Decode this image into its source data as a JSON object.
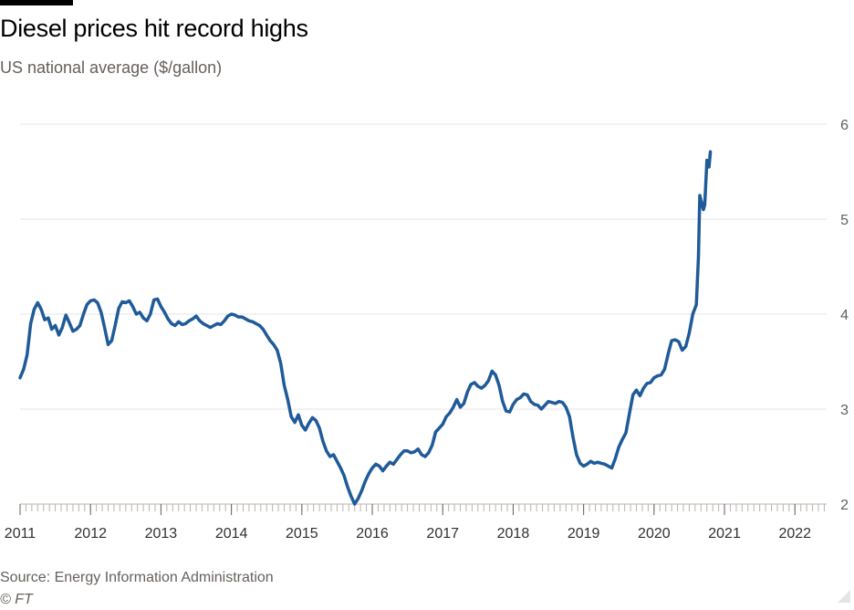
{
  "title": "Diesel prices hit record highs",
  "subtitle": "US national average ($/gallon)",
  "source": "Source: Energy Information Administration",
  "credit": "© FT",
  "colors": {
    "line": "#1f5a99",
    "grid": "#e7e6e6",
    "axis": "#33302e"
  },
  "chart_data": {
    "type": "line",
    "title": "Diesel prices hit record highs",
    "subtitle": "US national average ($/gallon)",
    "xlabel": "",
    "ylabel": "",
    "xlim": [
      2011.0,
      2022.45
    ],
    "ylim": [
      2,
      6
    ],
    "y_ticks": [
      "2",
      "3",
      "4",
      "5",
      "6"
    ],
    "x_ticks": [
      "2011",
      "2012",
      "2013",
      "2014",
      "2015",
      "2016",
      "2017",
      "2018",
      "2019",
      "2020",
      "2021",
      "2022"
    ],
    "grid": true,
    "y_axis_side": "right",
    "series": [
      {
        "points": [
          [
            2011.0,
            3.33
          ],
          [
            2011.05,
            3.42
          ],
          [
            2011.1,
            3.57
          ],
          [
            2011.15,
            3.9
          ],
          [
            2011.2,
            4.05
          ],
          [
            2011.25,
            4.12
          ],
          [
            2011.3,
            4.05
          ],
          [
            2011.35,
            3.94
          ],
          [
            2011.4,
            3.96
          ],
          [
            2011.45,
            3.84
          ],
          [
            2011.5,
            3.88
          ],
          [
            2011.55,
            3.78
          ],
          [
            2011.6,
            3.86
          ],
          [
            2011.65,
            3.99
          ],
          [
            2011.7,
            3.91
          ],
          [
            2011.75,
            3.82
          ],
          [
            2011.8,
            3.84
          ],
          [
            2011.85,
            3.88
          ],
          [
            2011.9,
            4.0
          ],
          [
            2011.95,
            4.1
          ],
          [
            2012.0,
            4.14
          ],
          [
            2012.05,
            4.15
          ],
          [
            2012.1,
            4.12
          ],
          [
            2012.15,
            4.02
          ],
          [
            2012.2,
            3.86
          ],
          [
            2012.25,
            3.68
          ],
          [
            2012.3,
            3.72
          ],
          [
            2012.35,
            3.88
          ],
          [
            2012.4,
            4.06
          ],
          [
            2012.45,
            4.13
          ],
          [
            2012.5,
            4.12
          ],
          [
            2012.55,
            4.14
          ],
          [
            2012.6,
            4.08
          ],
          [
            2012.65,
            4.0
          ],
          [
            2012.7,
            4.02
          ],
          [
            2012.75,
            3.96
          ],
          [
            2012.8,
            3.93
          ],
          [
            2012.85,
            4.0
          ],
          [
            2012.9,
            4.15
          ],
          [
            2012.95,
            4.16
          ],
          [
            2013.0,
            4.08
          ],
          [
            2013.05,
            4.02
          ],
          [
            2013.1,
            3.95
          ],
          [
            2013.15,
            3.9
          ],
          [
            2013.2,
            3.88
          ],
          [
            2013.25,
            3.92
          ],
          [
            2013.3,
            3.89
          ],
          [
            2013.35,
            3.9
          ],
          [
            2013.4,
            3.93
          ],
          [
            2013.45,
            3.95
          ],
          [
            2013.5,
            3.98
          ],
          [
            2013.55,
            3.93
          ],
          [
            2013.6,
            3.9
          ],
          [
            2013.65,
            3.88
          ],
          [
            2013.7,
            3.86
          ],
          [
            2013.75,
            3.88
          ],
          [
            2013.8,
            3.9
          ],
          [
            2013.85,
            3.89
          ],
          [
            2013.9,
            3.93
          ],
          [
            2013.95,
            3.98
          ],
          [
            2014.0,
            4.0
          ],
          [
            2014.05,
            3.99
          ],
          [
            2014.1,
            3.97
          ],
          [
            2014.15,
            3.97
          ],
          [
            2014.2,
            3.95
          ],
          [
            2014.25,
            3.93
          ],
          [
            2014.3,
            3.92
          ],
          [
            2014.35,
            3.9
          ],
          [
            2014.4,
            3.88
          ],
          [
            2014.45,
            3.84
          ],
          [
            2014.5,
            3.78
          ],
          [
            2014.55,
            3.72
          ],
          [
            2014.6,
            3.68
          ],
          [
            2014.65,
            3.62
          ],
          [
            2014.7,
            3.48
          ],
          [
            2014.75,
            3.25
          ],
          [
            2014.8,
            3.1
          ],
          [
            2014.85,
            2.92
          ],
          [
            2014.9,
            2.86
          ],
          [
            2014.95,
            2.94
          ],
          [
            2015.0,
            2.83
          ],
          [
            2015.05,
            2.78
          ],
          [
            2015.1,
            2.85
          ],
          [
            2015.15,
            2.91
          ],
          [
            2015.2,
            2.88
          ],
          [
            2015.25,
            2.8
          ],
          [
            2015.3,
            2.66
          ],
          [
            2015.35,
            2.56
          ],
          [
            2015.4,
            2.5
          ],
          [
            2015.45,
            2.52
          ],
          [
            2015.5,
            2.45
          ],
          [
            2015.55,
            2.38
          ],
          [
            2015.6,
            2.3
          ],
          [
            2015.65,
            2.18
          ],
          [
            2015.7,
            2.08
          ],
          [
            2015.75,
            2.0
          ],
          [
            2015.8,
            2.06
          ],
          [
            2015.85,
            2.14
          ],
          [
            2015.9,
            2.24
          ],
          [
            2015.95,
            2.32
          ],
          [
            2016.0,
            2.38
          ],
          [
            2016.05,
            2.42
          ],
          [
            2016.1,
            2.4
          ],
          [
            2016.15,
            2.35
          ],
          [
            2016.2,
            2.4
          ],
          [
            2016.25,
            2.44
          ],
          [
            2016.3,
            2.42
          ],
          [
            2016.35,
            2.47
          ],
          [
            2016.4,
            2.52
          ],
          [
            2016.45,
            2.56
          ],
          [
            2016.5,
            2.56
          ],
          [
            2016.55,
            2.54
          ],
          [
            2016.6,
            2.55
          ],
          [
            2016.65,
            2.58
          ],
          [
            2016.7,
            2.52
          ],
          [
            2016.75,
            2.5
          ],
          [
            2016.8,
            2.54
          ],
          [
            2016.85,
            2.62
          ],
          [
            2016.9,
            2.76
          ],
          [
            2016.95,
            2.8
          ],
          [
            2017.0,
            2.84
          ],
          [
            2017.05,
            2.92
          ],
          [
            2017.1,
            2.96
          ],
          [
            2017.15,
            3.02
          ],
          [
            2017.2,
            3.1
          ],
          [
            2017.25,
            3.02
          ],
          [
            2017.3,
            3.06
          ],
          [
            2017.35,
            3.18
          ],
          [
            2017.4,
            3.26
          ],
          [
            2017.45,
            3.28
          ],
          [
            2017.5,
            3.24
          ],
          [
            2017.55,
            3.22
          ],
          [
            2017.6,
            3.25
          ],
          [
            2017.65,
            3.3
          ],
          [
            2017.7,
            3.4
          ],
          [
            2017.75,
            3.36
          ],
          [
            2017.8,
            3.25
          ],
          [
            2017.85,
            3.08
          ],
          [
            2017.9,
            2.98
          ],
          [
            2017.95,
            2.97
          ],
          [
            2018.0,
            3.05
          ],
          [
            2018.05,
            3.1
          ],
          [
            2018.1,
            3.12
          ],
          [
            2018.15,
            3.16
          ],
          [
            2018.2,
            3.15
          ],
          [
            2018.25,
            3.08
          ],
          [
            2018.3,
            3.05
          ],
          [
            2018.35,
            3.04
          ],
          [
            2018.4,
            3.0
          ],
          [
            2018.45,
            3.04
          ],
          [
            2018.5,
            3.08
          ],
          [
            2018.55,
            3.07
          ],
          [
            2018.6,
            3.06
          ],
          [
            2018.65,
            3.08
          ],
          [
            2018.7,
            3.07
          ],
          [
            2018.75,
            3.02
          ],
          [
            2018.8,
            2.92
          ],
          [
            2018.85,
            2.7
          ],
          [
            2018.9,
            2.52
          ],
          [
            2018.95,
            2.43
          ],
          [
            2019.0,
            2.4
          ],
          [
            2019.05,
            2.42
          ],
          [
            2019.1,
            2.45
          ],
          [
            2019.15,
            2.43
          ],
          [
            2019.2,
            2.44
          ],
          [
            2019.25,
            2.43
          ],
          [
            2019.3,
            2.42
          ],
          [
            2019.35,
            2.4
          ],
          [
            2019.4,
            2.38
          ],
          [
            2019.45,
            2.48
          ],
          [
            2019.5,
            2.6
          ],
          [
            2019.55,
            2.68
          ],
          [
            2019.6,
            2.75
          ],
          [
            2019.65,
            2.95
          ],
          [
            2019.7,
            3.15
          ],
          [
            2019.75,
            3.2
          ],
          [
            2019.8,
            3.14
          ],
          [
            2019.85,
            3.22
          ],
          [
            2019.9,
            3.27
          ],
          [
            2019.95,
            3.28
          ],
          [
            2020.0,
            3.33
          ],
          [
            2020.05,
            3.35
          ],
          [
            2020.1,
            3.36
          ],
          [
            2020.15,
            3.42
          ],
          [
            2020.2,
            3.58
          ],
          [
            2020.25,
            3.72
          ],
          [
            2020.3,
            3.73
          ],
          [
            2020.35,
            3.71
          ],
          [
            2020.4,
            3.62
          ],
          [
            2020.45,
            3.66
          ],
          [
            2020.5,
            3.8
          ],
          [
            2020.55,
            4.0
          ],
          [
            2020.6,
            4.1
          ],
          [
            2020.63,
            4.6
          ],
          [
            2020.65,
            5.25
          ],
          [
            2020.7,
            5.1
          ],
          [
            2020.72,
            5.15
          ],
          [
            2020.75,
            5.62
          ],
          [
            2020.78,
            5.55
          ],
          [
            2020.8,
            5.71
          ]
        ]
      }
    ]
  }
}
